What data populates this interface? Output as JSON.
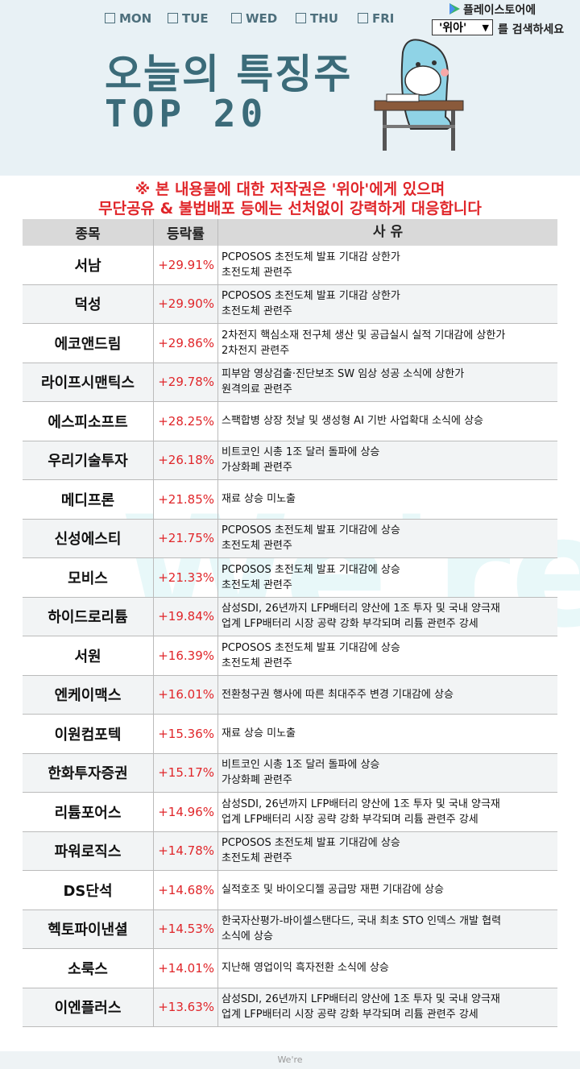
{
  "header": {
    "days": [
      "MON",
      "TUE",
      "WED",
      "THU",
      "FRI"
    ],
    "store": "플레이스토어에",
    "search_box": "'위아'",
    "search_suffix": "를 검색하세요",
    "title": "오늘의 특징주",
    "subtitle": "TOP 20"
  },
  "notice": [
    "※ 본 내용물에 대한 저작권은 '위아'에게 있으며",
    "무단공유 & 불법배포 등에는 선처없이 강력하게 대응합니다"
  ],
  "table": {
    "columns": [
      "종목",
      "등락률",
      "사 유"
    ],
    "rows": [
      [
        "서남",
        "+29.91%",
        [
          "PCPOSOS 초전도체 발표 기대감 상한가",
          "초전도체 관련주"
        ]
      ],
      [
        "덕성",
        "+29.90%",
        [
          "PCPOSOS 초전도체 발표 기대감 상한가",
          "초전도체 관련주"
        ]
      ],
      [
        "에코앤드림",
        "+29.86%",
        [
          "2차전지 핵심소재 전구체 생산 및 공급실시 실적 기대감에 상한가",
          "2차전지 관련주"
        ]
      ],
      [
        "라이프시맨틱스",
        "+29.78%",
        [
          "피부암 영상검출·진단보조 SW 임상 성공 소식에 상한가",
          "원격의료 관련주"
        ]
      ],
      [
        "에스피소프트",
        "+28.25%",
        [
          "스팩합병 상장 첫날 및 생성형 AI 기반 사업확대 소식에 상승"
        ]
      ],
      [
        "우리기술투자",
        "+26.18%",
        [
          "비트코인 시총 1조 달러 돌파에 상승",
          "가상화폐 관련주"
        ]
      ],
      [
        "메디프론",
        "+21.85%",
        [
          "재료 상승 미노출"
        ]
      ],
      [
        "신성에스티",
        "+21.75%",
        [
          "PCPOSOS 초전도체 발표 기대감에 상승",
          "초전도체 관련주"
        ]
      ],
      [
        "모비스",
        "+21.33%",
        [
          "PCPOSOS 초전도체 발표 기대감에 상승",
          "초전도체 관련주"
        ]
      ],
      [
        "하이드로리튬",
        "+19.84%",
        [
          "삼성SDI, 26년까지 LFP배터리 양산에 1조 투자 및 국내 양극재",
          "업계 LFP배터리 시장 공략 강화 부각되며 리튬 관련주 강세"
        ]
      ],
      [
        "서원",
        "+16.39%",
        [
          "PCPOSOS 초전도체 발표 기대감에 상승",
          "초전도체 관련주"
        ]
      ],
      [
        "엔케이맥스",
        "+16.01%",
        [
          "전환청구권 행사에 따른 최대주주 변경 기대감에 상승"
        ]
      ],
      [
        "이원컴포텍",
        "+15.36%",
        [
          "재료 상승 미노출"
        ]
      ],
      [
        "한화투자증권",
        "+15.17%",
        [
          "비트코인 시총 1조 달러 돌파에 상승",
          "가상화폐 관련주"
        ]
      ],
      [
        "리튬포어스",
        "+14.96%",
        [
          "삼성SDI, 26년까지 LFP배터리 양산에 1조 투자 및 국내 양극재",
          "업계 LFP배터리 시장 공략 강화 부각되며 리튬 관련주 강세"
        ]
      ],
      [
        "파워로직스",
        "+14.78%",
        [
          "PCPOSOS 초전도체 발표 기대감에 상승",
          "초전도체 관련주"
        ]
      ],
      [
        "DS단석",
        "+14.68%",
        [
          "실적호조 및 바이오디젤 공급망 재편 기대감에 상승"
        ]
      ],
      [
        "헥토파이낸셜",
        "+14.53%",
        [
          "한국자산평가-바이셀스탠다드, 국내 최초 STO 인덱스 개발 협력",
          "소식에 상승"
        ]
      ],
      [
        "소룩스",
        "+14.01%",
        [
          "지난해 영업이익 흑자전환 소식에 상승"
        ]
      ],
      [
        "이엔플러스",
        "+13.63%",
        [
          "삼성SDI, 26년까지 LFP배터리 양산에 1조 투자 및 국내 양극재",
          "업계 LFP배터리 시장 공략 강화 부각되며 리튬 관련주 강세"
        ]
      ]
    ]
  },
  "watermark": "We're",
  "footer": "We're"
}
